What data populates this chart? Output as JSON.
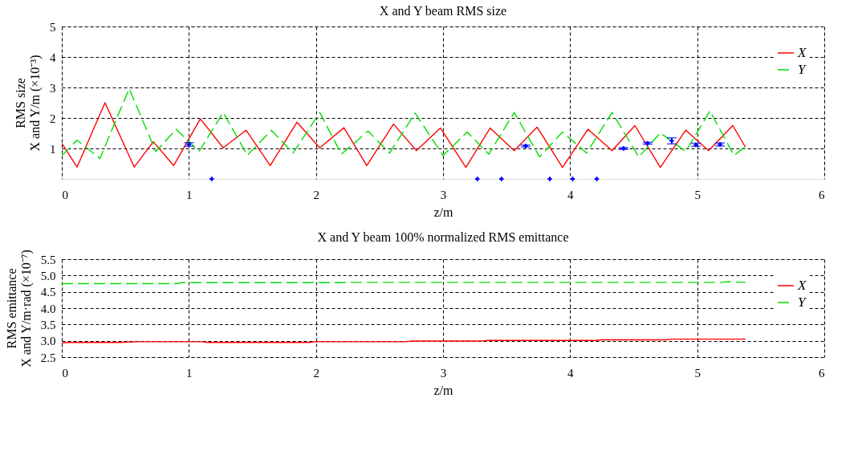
{
  "chart_data": [
    {
      "type": "line",
      "title": "X and Y beam RMS size",
      "xlabel": "z/m",
      "ylabel": "RMS size\nX and Y/m  (×10⁻³)",
      "xlim": [
        0,
        6
      ],
      "ylim": [
        0,
        5
      ],
      "xticks": [
        0,
        1,
        2,
        3,
        4,
        5,
        6
      ],
      "yticks": [
        1,
        2,
        3,
        4,
        5
      ],
      "grid": true,
      "legend": "top right",
      "series": [
        {
          "name": "X",
          "color": "#ff0000",
          "line_style": "solid",
          "x": [
            0,
            0.12,
            0.34,
            0.57,
            0.72,
            0.88,
            1.09,
            1.27,
            1.45,
            1.64,
            1.85,
            2.03,
            2.22,
            2.4,
            2.61,
            2.79,
            2.98,
            3.18,
            3.37,
            3.56,
            3.74,
            3.94,
            4.14,
            4.33,
            4.51,
            4.71,
            4.91,
            5.09,
            5.28,
            5.38
          ],
          "values": [
            1.17,
            0.39,
            2.5,
            0.39,
            1.22,
            0.44,
            1.97,
            1.02,
            1.6,
            0.44,
            1.86,
            1.02,
            1.68,
            0.44,
            1.8,
            0.93,
            1.67,
            0.38,
            1.67,
            0.93,
            1.7,
            0.38,
            1.63,
            0.93,
            1.75,
            0.38,
            1.6,
            0.93,
            1.75,
            1.04
          ]
        },
        {
          "name": "Y",
          "color": "#00dd00",
          "line_style": "dashed",
          "x": [
            0,
            0.12,
            0.3,
            0.53,
            0.74,
            0.9,
            1.08,
            1.27,
            1.46,
            1.65,
            1.82,
            2.03,
            2.2,
            2.41,
            2.58,
            2.78,
            3.0,
            3.19,
            3.36,
            3.56,
            3.76,
            3.94,
            4.13,
            4.33,
            4.54,
            4.71,
            4.91,
            5.1,
            5.29,
            5.37
          ],
          "values": [
            0.76,
            1.27,
            0.67,
            2.96,
            0.9,
            1.63,
            0.9,
            2.18,
            0.78,
            1.59,
            0.85,
            2.18,
            0.81,
            1.57,
            0.85,
            2.16,
            0.77,
            1.54,
            0.81,
            2.18,
            0.72,
            1.54,
            0.85,
            2.18,
            0.72,
            1.51,
            0.9,
            2.23,
            0.77,
            1.03
          ]
        },
        {
          "type": "scatter",
          "color": "#0000ff",
          "marker": "cross",
          "x": [
            1.0,
            3.65,
            4.42,
            4.61,
            4.8,
            4.99,
            5.18,
            1.18,
            3.27,
            3.46,
            3.84,
            4.02,
            4.21
          ],
          "values": [
            1.13,
            1.08,
            1.0,
            1.17,
            1.25,
            1.12,
            1.13,
            0,
            0,
            0,
            0,
            0,
            0
          ],
          "errors": [
            0.06,
            0.03,
            0.03,
            0.03,
            0.1,
            0.05,
            0.05,
            null,
            null,
            null,
            null,
            null,
            null
          ]
        }
      ]
    },
    {
      "type": "line",
      "title": "X and Y beam 100% normalized RMS emittance",
      "xlabel": "z/m",
      "ylabel": "RMS emittance\nX and Y/m·rad  (×10⁻⁷)",
      "xlim": [
        0,
        6
      ],
      "ylim": [
        2.5,
        5.5
      ],
      "xticks": [
        0,
        1,
        2,
        3,
        4,
        5,
        6
      ],
      "yticks": [
        2.5,
        {
          "value": 3,
          "label": "3.0"
        },
        3.5,
        {
          "value": 4,
          "label": "4.0"
        },
        4.5,
        {
          "value": 5,
          "label": "5.0"
        },
        5.5
      ],
      "grid": true,
      "legend": "top right",
      "series": [
        {
          "name": "X",
          "color": "#ff0000",
          "line_style": "solid",
          "x": [
            0,
            0.05,
            0.45,
            0.6,
            1.1,
            1.15,
            1.95,
            2.0,
            2.7,
            2.75,
            3.3,
            3.35,
            4.2,
            4.25,
            4.75,
            4.8,
            5.38
          ],
          "values": [
            2.93,
            2.95,
            2.95,
            2.97,
            2.97,
            2.95,
            2.95,
            2.97,
            2.97,
            2.99,
            2.99,
            3.01,
            3.01,
            3.03,
            3.03,
            3.05,
            3.05
          ]
        },
        {
          "name": "Y",
          "color": "#00dd00",
          "line_style": "dashed",
          "x": [
            0,
            0.9,
            0.95,
            2.2,
            2.25,
            2.4,
            5.2,
            5.25,
            5.38
          ],
          "values": [
            4.75,
            4.75,
            4.78,
            4.78,
            4.79,
            4.79,
            4.79,
            4.81,
            4.79
          ]
        }
      ]
    }
  ]
}
